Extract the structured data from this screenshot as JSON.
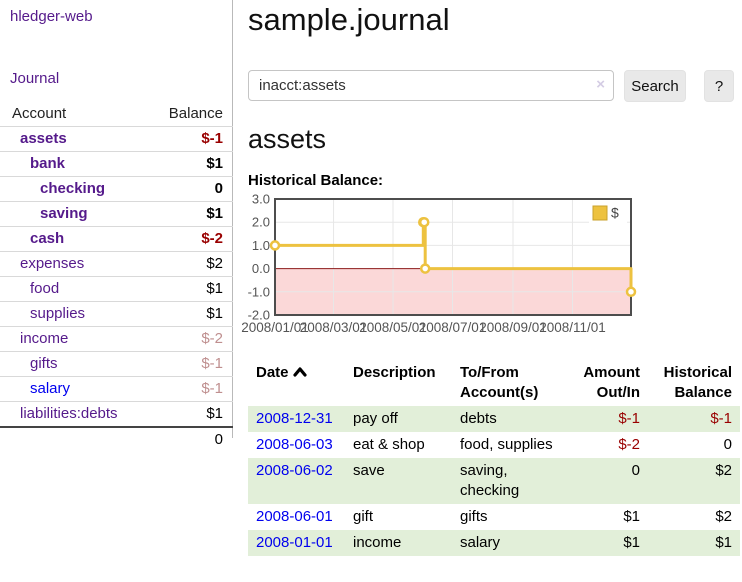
{
  "app": {
    "brand": "hledger-web",
    "nav_journal": "Journal"
  },
  "colors": {
    "purple_link": "#551a8b",
    "blue_link": "#0000ee",
    "negative_strong": "#990000",
    "negative_soft": "#bf8f8f",
    "row_highlight_green": "#e2efd9",
    "series_gold": "#edc240",
    "negative_area_pink": "#fbd8d8",
    "zero_line_red": "#8b1a1a"
  },
  "sidebar": {
    "header": {
      "account": "Account",
      "balance": "Balance"
    },
    "accounts": [
      {
        "name": "assets",
        "balance": "$-1",
        "depth": 1,
        "bold": true,
        "bal_class": "neg-strong",
        "link": "purple"
      },
      {
        "name": "bank",
        "balance": "$1",
        "depth": 2,
        "bold": true,
        "bal_class": "",
        "link": "purple"
      },
      {
        "name": "checking",
        "balance": "0",
        "depth": 3,
        "bold": true,
        "bal_class": "",
        "link": "purple"
      },
      {
        "name": "saving",
        "balance": "$1",
        "depth": 3,
        "bold": true,
        "bal_class": "",
        "link": "purple"
      },
      {
        "name": "cash",
        "balance": "$-2",
        "depth": 2,
        "bold": true,
        "bal_class": "neg-strong",
        "link": "purple"
      },
      {
        "name": "expenses",
        "balance": "$2",
        "depth": 1,
        "bold": false,
        "bal_class": "",
        "link": "purple"
      },
      {
        "name": "food",
        "balance": "$1",
        "depth": 2,
        "bold": false,
        "bal_class": "",
        "link": "purple"
      },
      {
        "name": "supplies",
        "balance": "$1",
        "depth": 2,
        "bold": false,
        "bal_class": "",
        "link": "purple"
      },
      {
        "name": "income",
        "balance": "$-2",
        "depth": 1,
        "bold": false,
        "bal_class": "neg-soft",
        "link": "purple"
      },
      {
        "name": "gifts",
        "balance": "$-1",
        "depth": 2,
        "bold": false,
        "bal_class": "neg-soft",
        "link": "purple"
      },
      {
        "name": "salary",
        "balance": "$-1",
        "depth": 2,
        "bold": false,
        "bal_class": "neg-soft",
        "link": "blue"
      },
      {
        "name": "liabilities:debts",
        "balance": "$1",
        "depth": 1,
        "bold": false,
        "bal_class": "",
        "link": "purple"
      }
    ],
    "total": "0"
  },
  "main": {
    "title": "sample.journal",
    "search": {
      "value": "inacct:assets",
      "clear_icon": "×",
      "button_label": "Search",
      "help_label": "?"
    },
    "account_heading": "assets",
    "chart_section_label": "Historical Balance:"
  },
  "chart_data": {
    "type": "line",
    "step": true,
    "title": "Historical Balance",
    "series": [
      {
        "name": "$",
        "color": "#edc240",
        "points": [
          [
            "2008/01/01",
            1
          ],
          [
            "2008/06/01",
            2
          ],
          [
            "2008/06/02",
            2
          ],
          [
            "2008/06/03",
            0
          ],
          [
            "2008/12/31",
            -1
          ]
        ]
      }
    ],
    "x_range": [
      "2008/01/01",
      "2008/12/31"
    ],
    "ylim": [
      -2,
      3
    ],
    "y_ticks": [
      -2,
      -1,
      0,
      1,
      2,
      3
    ],
    "y_tick_labels": [
      "-2.0",
      "-1.0",
      "0.0",
      "1.0",
      "2.0",
      "3.0"
    ],
    "x_ticks": [
      "2008/01/01",
      "2008/03/01",
      "2008/05/01",
      "2008/07/01",
      "2008/09/01",
      "2008/11/01"
    ],
    "legend": {
      "label": "$",
      "position": "top-right"
    },
    "grid": true,
    "negative_fill": "#fbd8d8",
    "zero_line_color": "#8b1a1a"
  },
  "register": {
    "headers": [
      "Date",
      "Description",
      "To/From Account(s)",
      "Amount Out/In",
      "Historical Balance"
    ],
    "sort": {
      "column": "Date",
      "direction": "asc"
    },
    "rows": [
      {
        "date": "2008-12-31",
        "description": "pay off",
        "accounts": "debts",
        "amount": "$-1",
        "balance": "$-1",
        "amount_neg": true,
        "balance_neg": true
      },
      {
        "date": "2008-06-03",
        "description": "eat & shop",
        "accounts": "food, supplies",
        "amount": "$-2",
        "balance": "0",
        "amount_neg": true,
        "balance_neg": false
      },
      {
        "date": "2008-06-02",
        "description": "save",
        "accounts": "saving, checking",
        "amount": "0",
        "balance": "$2",
        "amount_neg": false,
        "balance_neg": false
      },
      {
        "date": "2008-06-01",
        "description": "gift",
        "accounts": "gifts",
        "amount": "$1",
        "balance": "$2",
        "amount_neg": false,
        "balance_neg": false
      },
      {
        "date": "2008-01-01",
        "description": "income",
        "accounts": "salary",
        "amount": "$1",
        "balance": "$1",
        "amount_neg": false,
        "balance_neg": false
      }
    ]
  }
}
